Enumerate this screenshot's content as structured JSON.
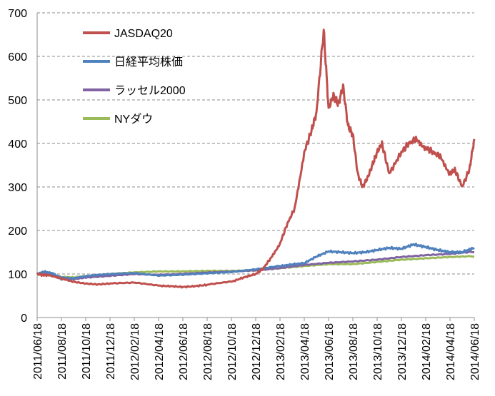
{
  "chart_data": {
    "type": "line",
    "title": "",
    "xlabel": "",
    "ylabel": "",
    "ylim": [
      0,
      700
    ],
    "yticks": [
      0,
      100,
      200,
      300,
      400,
      500,
      600,
      700
    ],
    "ytick_labels": [
      "0",
      "100",
      "200",
      "300",
      "400",
      "500",
      "600",
      "700"
    ],
    "grid": true,
    "legend_position": "top-left",
    "categories": [
      "2011/06/18",
      "2011/08/18",
      "2011/10/18",
      "2011/12/18",
      "2012/02/18",
      "2012/04/18",
      "2012/06/18",
      "2012/08/18",
      "2012/10/18",
      "2012/12/18",
      "2013/02/18",
      "2013/04/18",
      "2013/06/18",
      "2013/08/18",
      "2013/10/18",
      "2013/12/18",
      "2014/02/18",
      "2014/04/18",
      "2014/06/18"
    ],
    "series": [
      {
        "name": "JASDAQ20",
        "color": "#c0504d",
        "x": [
          0,
          0.2,
          0.5,
          1,
          1.5,
          2,
          2.5,
          3,
          4,
          5,
          5.5,
          6,
          6.5,
          7,
          8,
          8.5,
          9,
          9.3,
          9.6,
          10,
          10.3,
          10.6,
          11,
          11.3,
          11.5,
          11.8,
          12,
          12.2,
          12.4,
          12.6,
          12.8,
          13,
          13.2,
          13.4,
          13.6,
          13.8,
          14,
          14.2,
          14.5,
          15,
          15.3,
          15.6,
          16,
          16.3,
          16.6,
          17,
          17.2,
          17.5,
          17.8,
          18
        ],
        "values": [
          100,
          98,
          97,
          90,
          82,
          78,
          76,
          78,
          80,
          73,
          72,
          70,
          72,
          75,
          82,
          92,
          100,
          112,
          135,
          170,
          215,
          250,
          380,
          430,
          470,
          660,
          480,
          510,
          490,
          530,
          440,
          420,
          330,
          300,
          320,
          350,
          380,
          400,
          330,
          380,
          400,
          410,
          390,
          380,
          370,
          330,
          340,
          300,
          340,
          410
        ]
      },
      {
        "name": "日経平均株価",
        "color": "#4f81bd",
        "x": [
          0,
          0.3,
          0.6,
          1,
          1.5,
          2,
          2.5,
          3,
          4,
          5,
          6,
          7,
          8,
          9,
          10,
          10.5,
          11,
          11.5,
          12,
          12.5,
          13,
          13.5,
          14,
          14.5,
          15,
          15.5,
          16,
          16.5,
          17,
          17.5,
          18
        ],
        "values": [
          100,
          105,
          102,
          92,
          90,
          95,
          98,
          100,
          102,
          96,
          98,
          101,
          104,
          110,
          118,
          122,
          125,
          140,
          152,
          150,
          148,
          150,
          155,
          160,
          158,
          168,
          162,
          155,
          150,
          150,
          160
        ]
      },
      {
        "name": "ラッセル2000",
        "color": "#8064a2",
        "x": [
          0,
          0.5,
          1,
          1.5,
          2,
          3,
          4,
          5,
          6,
          7,
          8,
          9,
          10,
          11,
          12,
          13,
          14,
          15,
          16,
          17,
          18
        ],
        "values": [
          100,
          100,
          88,
          88,
          92,
          96,
          100,
          98,
          100,
          103,
          105,
          108,
          113,
          120,
          125,
          128,
          132,
          138,
          142,
          145,
          150
        ]
      },
      {
        "name": "NYダウ",
        "color": "#9bbb59",
        "x": [
          0,
          0.5,
          1,
          1.5,
          2,
          3,
          4,
          5,
          6,
          7,
          8,
          9,
          10,
          11,
          12,
          13,
          14,
          15,
          16,
          17,
          18
        ],
        "values": [
          100,
          97,
          93,
          92,
          95,
          100,
          104,
          106,
          106,
          107,
          107,
          108,
          113,
          118,
          122,
          122,
          127,
          132,
          135,
          138,
          140
        ]
      }
    ]
  }
}
